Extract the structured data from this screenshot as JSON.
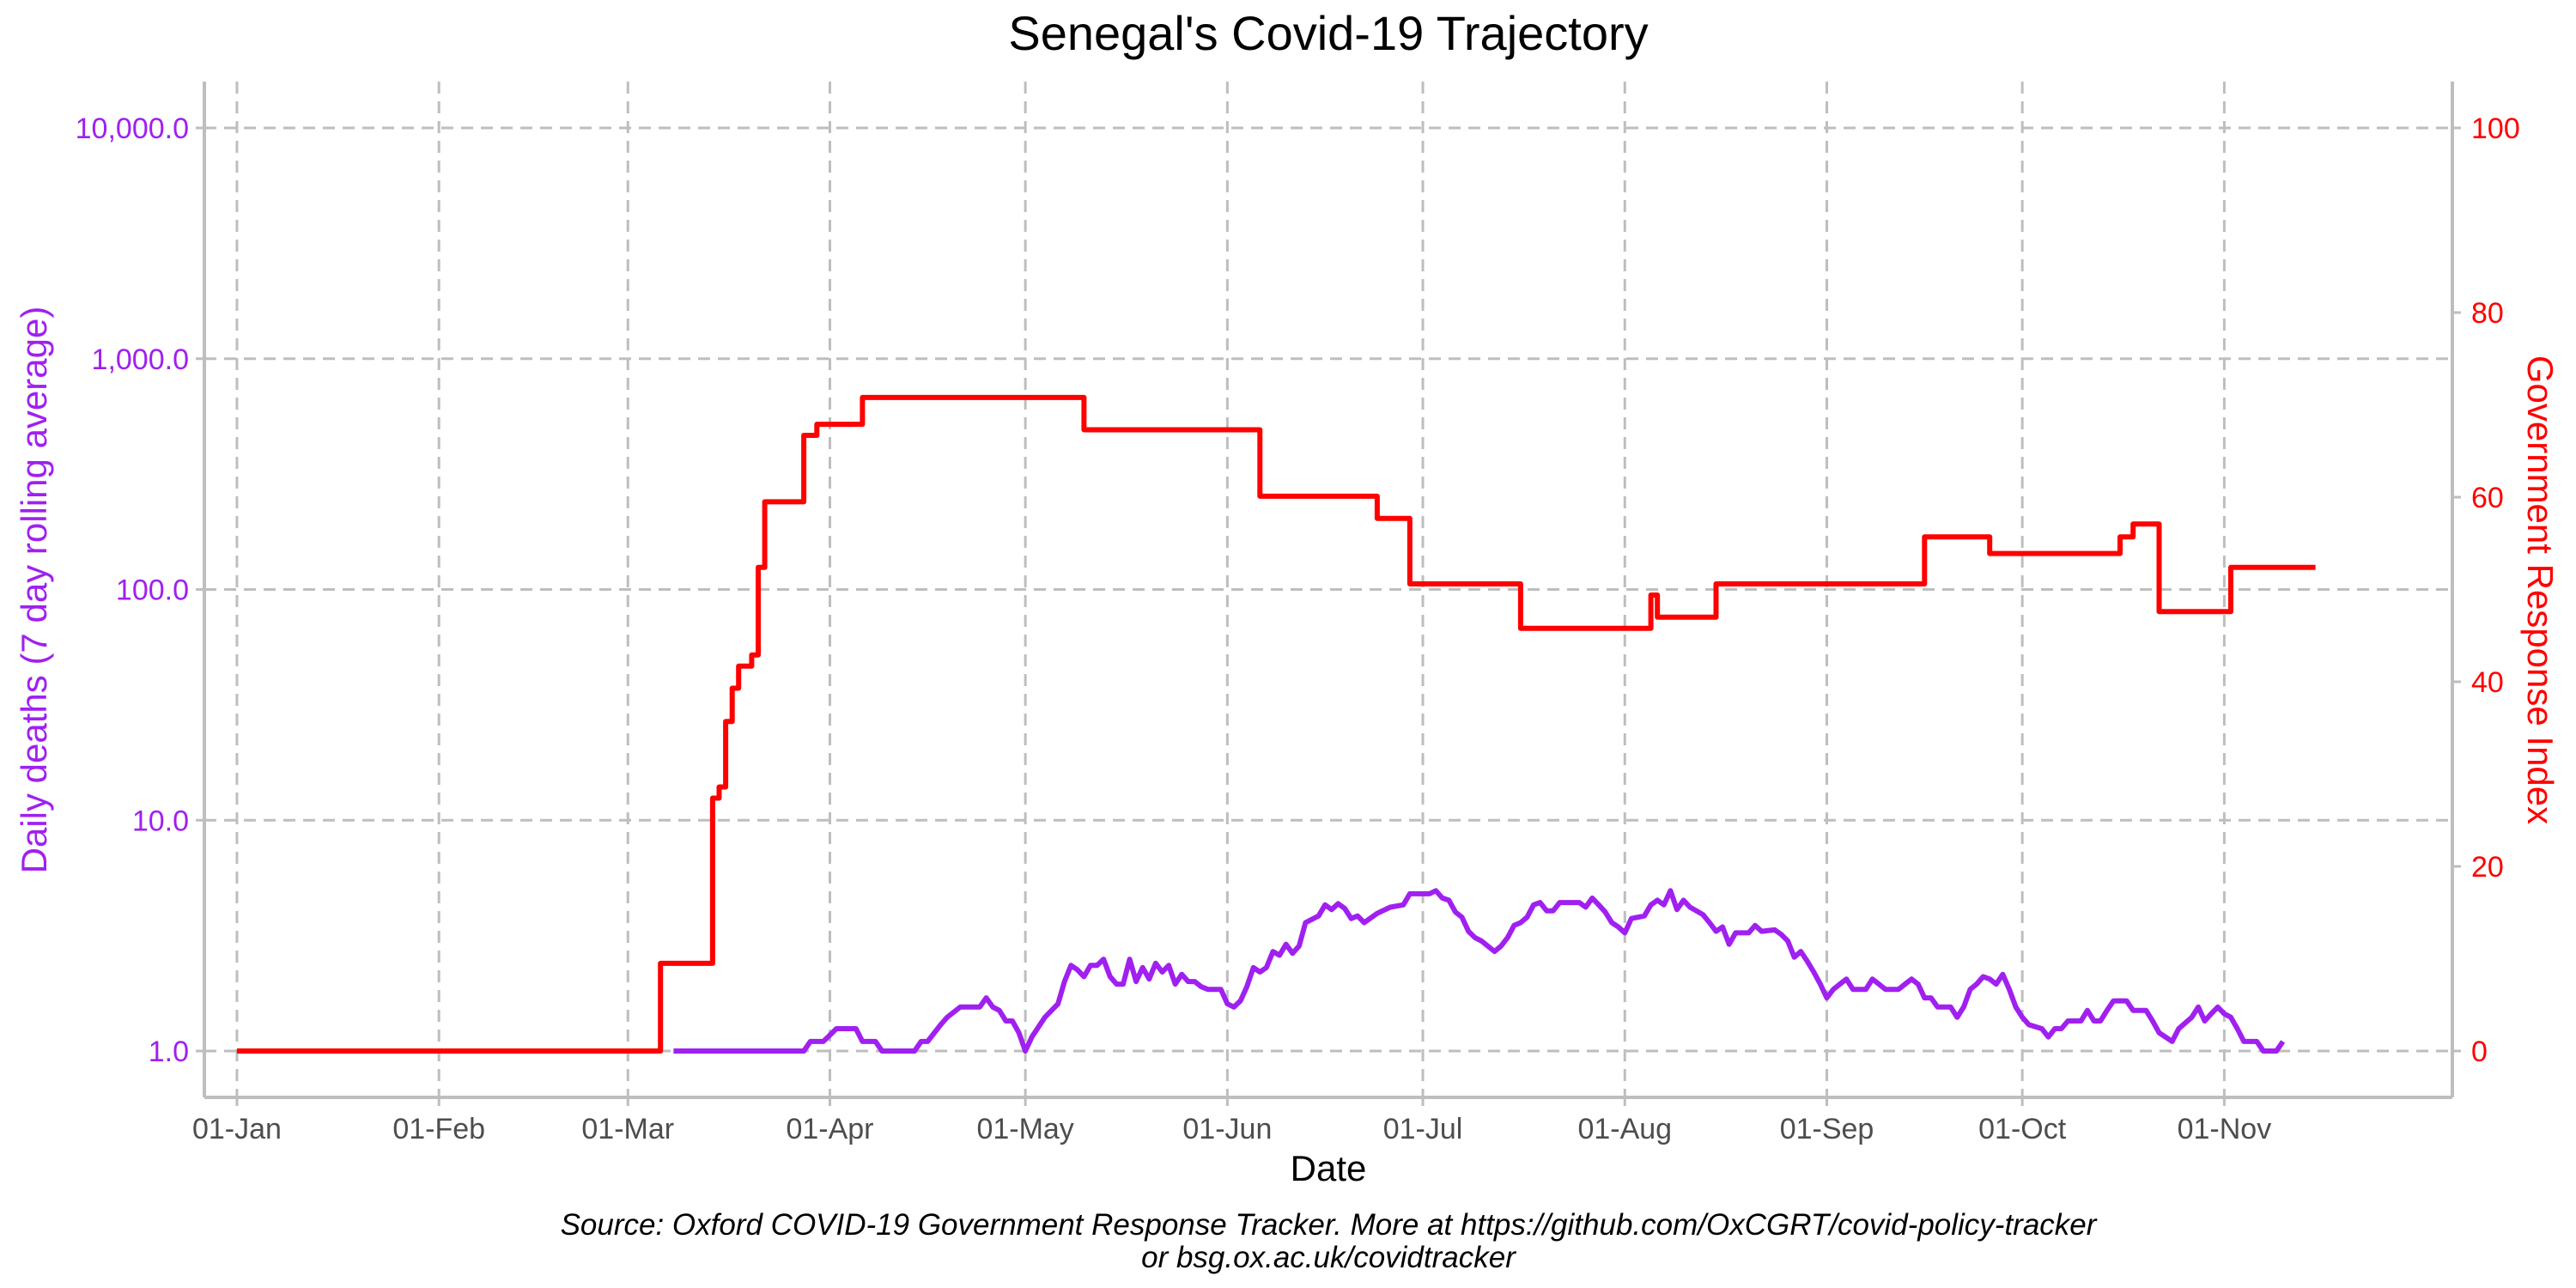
{
  "chart_data": {
    "type": "line",
    "title": "Senegal's Covid-19 Trajectory",
    "xlabel": "Date",
    "ylabel_left": "Daily deaths (7 day rolling average)",
    "ylabel_right": "Government Response Index",
    "caption_line1": "Source: Oxford COVID-19 Government Response Tracker. More at https://github.com/OxCGRT/covid-policy-tracker",
    "caption_line2": "or bsg.ox.ac.uk/covidtracker",
    "x_domain": [
      "2019-12-27",
      "2020-12-06"
    ],
    "x_ticks": [
      {
        "date": "2020-01-01",
        "label": "01-Jan"
      },
      {
        "date": "2020-02-01",
        "label": "01-Feb"
      },
      {
        "date": "2020-03-01",
        "label": "01-Mar"
      },
      {
        "date": "2020-04-01",
        "label": "01-Apr"
      },
      {
        "date": "2020-05-01",
        "label": "01-May"
      },
      {
        "date": "2020-06-01",
        "label": "01-Jun"
      },
      {
        "date": "2020-07-01",
        "label": "01-Jul"
      },
      {
        "date": "2020-08-01",
        "label": "01-Aug"
      },
      {
        "date": "2020-09-01",
        "label": "01-Sep"
      },
      {
        "date": "2020-10-01",
        "label": "01-Oct"
      },
      {
        "date": "2020-11-01",
        "label": "01-Nov"
      }
    ],
    "y_left": {
      "scale": "log10",
      "range": [
        1,
        10000
      ],
      "color": "#a020f0",
      "ticks": [
        {
          "value": 1,
          "label": "1.0"
        },
        {
          "value": 10,
          "label": "10.0"
        },
        {
          "value": 100,
          "label": "100.0"
        },
        {
          "value": 1000,
          "label": "1,000.0"
        },
        {
          "value": 10000,
          "label": "10,000.0"
        }
      ]
    },
    "y_right": {
      "scale": "linear",
      "range": [
        0,
        100
      ],
      "color": "#ff0000",
      "ticks": [
        {
          "value": 0,
          "label": "0"
        },
        {
          "value": 20,
          "label": "20"
        },
        {
          "value": 40,
          "label": "40"
        },
        {
          "value": 60,
          "label": "60"
        },
        {
          "value": 80,
          "label": "80"
        },
        {
          "value": 100,
          "label": "100"
        }
      ]
    },
    "grid": true,
    "series": [
      {
        "axis": "left",
        "color": "#a020f0",
        "step": false,
        "points": [
          [
            "2020-03-08",
            1.0
          ],
          [
            "2020-03-28",
            1.0
          ],
          [
            "2020-03-29",
            1.1
          ],
          [
            "2020-03-31",
            1.1
          ],
          [
            "2020-04-02",
            1.25
          ],
          [
            "2020-04-05",
            1.25
          ],
          [
            "2020-04-06",
            1.1
          ],
          [
            "2020-04-08",
            1.1
          ],
          [
            "2020-04-09",
            1.0
          ],
          [
            "2020-04-14",
            1.0
          ],
          [
            "2020-04-15",
            1.1
          ],
          [
            "2020-04-16",
            1.1
          ],
          [
            "2020-04-18",
            1.3
          ],
          [
            "2020-04-19",
            1.4
          ],
          [
            "2020-04-21",
            1.55
          ],
          [
            "2020-04-24",
            1.55
          ],
          [
            "2020-04-25",
            1.7
          ],
          [
            "2020-04-26",
            1.55
          ],
          [
            "2020-04-27",
            1.5
          ],
          [
            "2020-04-28",
            1.35
          ],
          [
            "2020-04-29",
            1.35
          ],
          [
            "2020-04-30",
            1.2
          ],
          [
            "2020-05-01",
            1.0
          ],
          [
            "2020-05-02",
            1.15
          ],
          [
            "2020-05-04",
            1.4
          ],
          [
            "2020-05-06",
            1.6
          ],
          [
            "2020-05-07",
            2.0
          ],
          [
            "2020-05-08",
            2.35
          ],
          [
            "2020-05-09",
            2.25
          ],
          [
            "2020-05-10",
            2.1
          ],
          [
            "2020-05-11",
            2.35
          ],
          [
            "2020-05-12",
            2.35
          ],
          [
            "2020-05-13",
            2.5
          ],
          [
            "2020-05-14",
            2.1
          ],
          [
            "2020-05-15",
            1.95
          ],
          [
            "2020-05-16",
            1.95
          ],
          [
            "2020-05-17",
            2.5
          ],
          [
            "2020-05-18",
            2.0
          ],
          [
            "2020-05-19",
            2.3
          ],
          [
            "2020-05-20",
            2.05
          ],
          [
            "2020-05-21",
            2.4
          ],
          [
            "2020-05-22",
            2.2
          ],
          [
            "2020-05-23",
            2.35
          ],
          [
            "2020-05-24",
            1.95
          ],
          [
            "2020-05-25",
            2.15
          ],
          [
            "2020-05-26",
            2.0
          ],
          [
            "2020-05-27",
            2.0
          ],
          [
            "2020-05-28",
            1.9
          ],
          [
            "2020-05-29",
            1.85
          ],
          [
            "2020-05-31",
            1.85
          ],
          [
            "2020-06-01",
            1.6
          ],
          [
            "2020-06-02",
            1.55
          ],
          [
            "2020-06-03",
            1.65
          ],
          [
            "2020-06-04",
            1.9
          ],
          [
            "2020-06-05",
            2.3
          ],
          [
            "2020-06-06",
            2.2
          ],
          [
            "2020-06-07",
            2.3
          ],
          [
            "2020-06-08",
            2.7
          ],
          [
            "2020-06-09",
            2.6
          ],
          [
            "2020-06-10",
            2.9
          ],
          [
            "2020-06-11",
            2.65
          ],
          [
            "2020-06-12",
            2.85
          ],
          [
            "2020-06-13",
            3.6
          ],
          [
            "2020-06-15",
            3.85
          ],
          [
            "2020-06-16",
            4.3
          ],
          [
            "2020-06-17",
            4.1
          ],
          [
            "2020-06-18",
            4.35
          ],
          [
            "2020-06-19",
            4.15
          ],
          [
            "2020-06-20",
            3.75
          ],
          [
            "2020-06-21",
            3.85
          ],
          [
            "2020-06-22",
            3.6
          ],
          [
            "2020-06-24",
            3.95
          ],
          [
            "2020-06-26",
            4.2
          ],
          [
            "2020-06-28",
            4.3
          ],
          [
            "2020-06-29",
            4.8
          ],
          [
            "2020-07-02",
            4.8
          ],
          [
            "2020-07-03",
            4.95
          ],
          [
            "2020-07-04",
            4.6
          ],
          [
            "2020-07-05",
            4.5
          ],
          [
            "2020-07-06",
            4.0
          ],
          [
            "2020-07-07",
            3.8
          ],
          [
            "2020-07-08",
            3.3
          ],
          [
            "2020-07-09",
            3.1
          ],
          [
            "2020-07-10",
            3.0
          ],
          [
            "2020-07-12",
            2.7
          ],
          [
            "2020-07-13",
            2.85
          ],
          [
            "2020-07-14",
            3.1
          ],
          [
            "2020-07-15",
            3.5
          ],
          [
            "2020-07-16",
            3.6
          ],
          [
            "2020-07-17",
            3.8
          ],
          [
            "2020-07-18",
            4.3
          ],
          [
            "2020-07-19",
            4.4
          ],
          [
            "2020-07-20",
            4.05
          ],
          [
            "2020-07-21",
            4.05
          ],
          [
            "2020-07-22",
            4.4
          ],
          [
            "2020-07-25",
            4.4
          ],
          [
            "2020-07-26",
            4.2
          ],
          [
            "2020-07-27",
            4.6
          ],
          [
            "2020-07-28",
            4.3
          ],
          [
            "2020-07-29",
            4.0
          ],
          [
            "2020-07-30",
            3.6
          ],
          [
            "2020-07-31",
            3.45
          ],
          [
            "2020-08-01",
            3.25
          ],
          [
            "2020-08-02",
            3.75
          ],
          [
            "2020-08-04",
            3.85
          ],
          [
            "2020-08-05",
            4.3
          ],
          [
            "2020-08-06",
            4.5
          ],
          [
            "2020-08-07",
            4.3
          ],
          [
            "2020-08-08",
            4.95
          ],
          [
            "2020-08-09",
            4.1
          ],
          [
            "2020-08-10",
            4.5
          ],
          [
            "2020-08-11",
            4.2
          ],
          [
            "2020-08-13",
            3.9
          ],
          [
            "2020-08-14",
            3.6
          ],
          [
            "2020-08-15",
            3.3
          ],
          [
            "2020-08-16",
            3.45
          ],
          [
            "2020-08-17",
            2.9
          ],
          [
            "2020-08-18",
            3.25
          ],
          [
            "2020-08-20",
            3.25
          ],
          [
            "2020-08-21",
            3.5
          ],
          [
            "2020-08-22",
            3.3
          ],
          [
            "2020-08-24",
            3.35
          ],
          [
            "2020-08-25",
            3.2
          ],
          [
            "2020-08-26",
            3.0
          ],
          [
            "2020-08-27",
            2.55
          ],
          [
            "2020-08-28",
            2.7
          ],
          [
            "2020-08-29",
            2.45
          ],
          [
            "2020-08-30",
            2.2
          ],
          [
            "2020-08-31",
            1.95
          ],
          [
            "2020-09-01",
            1.7
          ],
          [
            "2020-09-02",
            1.85
          ],
          [
            "2020-09-03",
            1.95
          ],
          [
            "2020-09-04",
            2.05
          ],
          [
            "2020-09-05",
            1.85
          ],
          [
            "2020-09-07",
            1.85
          ],
          [
            "2020-09-08",
            2.05
          ],
          [
            "2020-09-09",
            1.95
          ],
          [
            "2020-09-10",
            1.85
          ],
          [
            "2020-09-12",
            1.85
          ],
          [
            "2020-09-13",
            1.95
          ],
          [
            "2020-09-14",
            2.05
          ],
          [
            "2020-09-15",
            1.95
          ],
          [
            "2020-09-16",
            1.7
          ],
          [
            "2020-09-17",
            1.7
          ],
          [
            "2020-09-18",
            1.55
          ],
          [
            "2020-09-20",
            1.55
          ],
          [
            "2020-09-21",
            1.4
          ],
          [
            "2020-09-22",
            1.55
          ],
          [
            "2020-09-23",
            1.85
          ],
          [
            "2020-09-24",
            1.95
          ],
          [
            "2020-09-25",
            2.1
          ],
          [
            "2020-09-26",
            2.05
          ],
          [
            "2020-09-27",
            1.95
          ],
          [
            "2020-09-28",
            2.15
          ],
          [
            "2020-09-29",
            1.85
          ],
          [
            "2020-09-30",
            1.55
          ],
          [
            "2020-10-01",
            1.4
          ],
          [
            "2020-10-02",
            1.3
          ],
          [
            "2020-10-04",
            1.25
          ],
          [
            "2020-10-05",
            1.15
          ],
          [
            "2020-10-06",
            1.25
          ],
          [
            "2020-10-07",
            1.25
          ],
          [
            "2020-10-08",
            1.35
          ],
          [
            "2020-10-10",
            1.35
          ],
          [
            "2020-10-11",
            1.5
          ],
          [
            "2020-10-12",
            1.35
          ],
          [
            "2020-10-13",
            1.35
          ],
          [
            "2020-10-14",
            1.5
          ],
          [
            "2020-10-15",
            1.65
          ],
          [
            "2020-10-17",
            1.65
          ],
          [
            "2020-10-18",
            1.5
          ],
          [
            "2020-10-20",
            1.5
          ],
          [
            "2020-10-21",
            1.35
          ],
          [
            "2020-10-22",
            1.2
          ],
          [
            "2020-10-24",
            1.1
          ],
          [
            "2020-10-25",
            1.25
          ],
          [
            "2020-10-27",
            1.4
          ],
          [
            "2020-10-28",
            1.55
          ],
          [
            "2020-10-29",
            1.35
          ],
          [
            "2020-10-30",
            1.45
          ],
          [
            "2020-10-31",
            1.55
          ],
          [
            "2020-11-01",
            1.45
          ],
          [
            "2020-11-02",
            1.4
          ],
          [
            "2020-11-03",
            1.25
          ],
          [
            "2020-11-04",
            1.1
          ],
          [
            "2020-11-06",
            1.1
          ],
          [
            "2020-11-07",
            1.0
          ],
          [
            "2020-11-09",
            1.0
          ],
          [
            "2020-11-10",
            1.1
          ]
        ]
      },
      {
        "axis": "right",
        "color": "#ff0000",
        "step": true,
        "points": [
          [
            "2020-01-01",
            0
          ],
          [
            "2020-03-05",
            0
          ],
          [
            "2020-03-06",
            9.5
          ],
          [
            "2020-03-13",
            9.5
          ],
          [
            "2020-03-14",
            27.4
          ],
          [
            "2020-03-15",
            28.6
          ],
          [
            "2020-03-16",
            35.7
          ],
          [
            "2020-03-17",
            39.3
          ],
          [
            "2020-03-18",
            41.7
          ],
          [
            "2020-03-20",
            42.9
          ],
          [
            "2020-03-21",
            52.4
          ],
          [
            "2020-03-22",
            59.5
          ],
          [
            "2020-03-27",
            59.5
          ],
          [
            "2020-03-28",
            66.7
          ],
          [
            "2020-03-30",
            67.9
          ],
          [
            "2020-04-05",
            67.9
          ],
          [
            "2020-04-06",
            70.8
          ],
          [
            "2020-05-09",
            70.8
          ],
          [
            "2020-05-10",
            67.3
          ],
          [
            "2020-06-05",
            67.3
          ],
          [
            "2020-06-06",
            60.1
          ],
          [
            "2020-06-23",
            60.1
          ],
          [
            "2020-06-24",
            57.7
          ],
          [
            "2020-06-28",
            57.7
          ],
          [
            "2020-06-29",
            50.6
          ],
          [
            "2020-07-15",
            50.6
          ],
          [
            "2020-07-16",
            45.8
          ],
          [
            "2020-08-04",
            45.8
          ],
          [
            "2020-08-05",
            49.4
          ],
          [
            "2020-08-06",
            47.0
          ],
          [
            "2020-08-14",
            47.0
          ],
          [
            "2020-08-15",
            50.6
          ],
          [
            "2020-09-15",
            50.6
          ],
          [
            "2020-09-16",
            55.7
          ],
          [
            "2020-09-25",
            55.7
          ],
          [
            "2020-09-26",
            53.9
          ],
          [
            "2020-10-15",
            53.9
          ],
          [
            "2020-10-16",
            55.7
          ],
          [
            "2020-10-18",
            57.1
          ],
          [
            "2020-10-21",
            57.1
          ],
          [
            "2020-10-22",
            47.6
          ],
          [
            "2020-11-01",
            47.6
          ],
          [
            "2020-11-02",
            52.4
          ],
          [
            "2020-11-15",
            52.4
          ]
        ]
      }
    ]
  }
}
